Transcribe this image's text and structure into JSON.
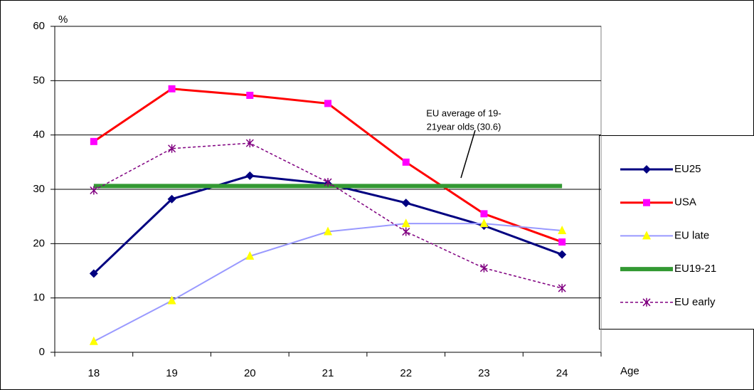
{
  "chart_data": {
    "type": "line",
    "y_label": "%",
    "x_label": "Age",
    "categories": [
      "18",
      "19",
      "20",
      "21",
      "22",
      "23",
      "24"
    ],
    "series": [
      {
        "name": "EU25",
        "color": "#000080",
        "marker": "diamond",
        "marker_color": "#000080",
        "width": 3,
        "dashed": false,
        "values": [
          14.5,
          28.2,
          32.5,
          31,
          27.5,
          23.3,
          18
        ]
      },
      {
        "name": "USA",
        "color": "#ff0000",
        "marker": "square",
        "marker_color": "#ff00ff",
        "width": 3,
        "dashed": false,
        "values": [
          38.8,
          48.5,
          47.3,
          45.8,
          35,
          25.5,
          20.3
        ]
      },
      {
        "name": "EU late",
        "color": "#9999ff",
        "marker": "triangle",
        "marker_color": "#ffff00",
        "width": 2,
        "dashed": false,
        "values": [
          2,
          9.5,
          17.7,
          22.2,
          23.7,
          23.7,
          22.4
        ]
      },
      {
        "name": "EU19-21",
        "color": "#339933",
        "marker": "none",
        "marker_color": "#339933",
        "width": 6,
        "dashed": false,
        "values": [
          30.6,
          30.6,
          30.6,
          30.6,
          30.6,
          30.6,
          30.6
        ]
      },
      {
        "name": "EU early",
        "color": "#800080",
        "marker": "star",
        "marker_color": "#800080",
        "width": 1.5,
        "dashed": true,
        "values": [
          29.8,
          37.5,
          38.5,
          31.3,
          22.2,
          15.5,
          11.8
        ]
      }
    ],
    "annotation": [
      "EU average of 19-",
      "21year olds (30.6)"
    ],
    "ylim": [
      0,
      60
    ],
    "yticks": [
      0,
      10,
      20,
      30,
      40,
      50,
      60
    ],
    "grid": true
  }
}
